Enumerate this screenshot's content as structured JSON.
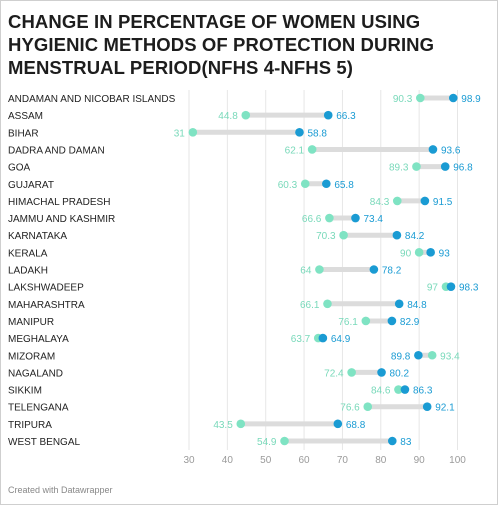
{
  "title": "CHANGE IN PERCENTAGE OF WOMEN USING HYGIENIC METHODS OF PROTECTION DURING MENSTRUAL PERIOD(NFHS 4-NFHS 5)",
  "footer": "Created with Datawrapper",
  "chart_data": {
    "type": "dumbbell",
    "title": "CHANGE IN PERCENTAGE OF WOMEN USING HYGIENIC METHODS OF PROTECTION DURING MENSTRUAL PERIOD(NFHS 4-NFHS 5)",
    "categories": [
      "ANDAMAN AND NICOBAR ISLANDS",
      "ASSAM",
      "BIHAR",
      "DADRA AND DAMAN",
      "GOA",
      "GUJARAT",
      "HIMACHAL PRADESH",
      "JAMMU AND KASHMIR",
      "KARNATAKA",
      "KERALA",
      "LADAKH",
      "LAKSHWADEEP",
      "MAHARASHTRA",
      "MANIPUR",
      "MEGHALAYA",
      "MIZORAM",
      "NAGALAND",
      "SIKKIM",
      "TELENGANA",
      "TRIPURA",
      "WEST BENGAL"
    ],
    "series": [
      {
        "values": [
          90.3,
          44.8,
          31,
          62.1,
          89.3,
          60.3,
          84.3,
          66.6,
          70.3,
          90,
          64,
          97,
          66.1,
          76.1,
          63.7,
          93.4,
          72.4,
          84.6,
          76.6,
          43.5,
          54.9
        ],
        "color": "#7fe3c3"
      },
      {
        "values": [
          98.9,
          66.3,
          58.8,
          93.6,
          96.8,
          65.8,
          91.5,
          73.4,
          84.2,
          93,
          78.2,
          98.3,
          84.8,
          82.9,
          64.9,
          89.8,
          80.2,
          86.3,
          92.1,
          68.8,
          83
        ],
        "color": "#1a9bd3"
      }
    ],
    "xlim": [
      25,
      102
    ],
    "xticks": [
      30,
      40,
      50,
      60,
      70,
      80,
      90,
      100
    ],
    "grid": true
  }
}
